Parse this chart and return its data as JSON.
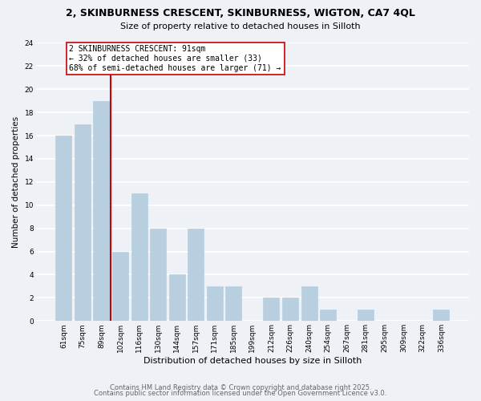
{
  "title": "2, SKINBURNESS CRESCENT, SKINBURNESS, WIGTON, CA7 4QL",
  "subtitle": "Size of property relative to detached houses in Silloth",
  "xlabel": "Distribution of detached houses by size in Silloth",
  "ylabel": "Number of detached properties",
  "bar_color": "#b8cfe0",
  "bar_edge_color": "#b8cfe0",
  "background_color": "#eef2f7",
  "plot_bg_color": "#eef2f7",
  "grid_color": "#ffffff",
  "categories": [
    "61sqm",
    "75sqm",
    "89sqm",
    "102sqm",
    "116sqm",
    "130sqm",
    "144sqm",
    "157sqm",
    "171sqm",
    "185sqm",
    "199sqm",
    "212sqm",
    "226sqm",
    "240sqm",
    "254sqm",
    "267sqm",
    "281sqm",
    "295sqm",
    "309sqm",
    "322sqm",
    "336sqm"
  ],
  "values": [
    16,
    17,
    19,
    6,
    11,
    8,
    4,
    8,
    3,
    3,
    0,
    2,
    2,
    3,
    1,
    0,
    1,
    0,
    0,
    0,
    1
  ],
  "ylim": [
    0,
    24
  ],
  "yticks": [
    0,
    2,
    4,
    6,
    8,
    10,
    12,
    14,
    16,
    18,
    20,
    22,
    24
  ],
  "vline_bar_index": 2,
  "annotation_box_text_line1": "2 SKINBURNESS CRESCENT: 91sqm",
  "annotation_box_text_line2": "← 32% of detached houses are smaller (33)",
  "annotation_box_text_line3": "68% of semi-detached houses are larger (71) →",
  "vline_color": "#cc0000",
  "annotation_edge_color": "#cc0000",
  "footer1": "Contains HM Land Registry data © Crown copyright and database right 2025.",
  "footer2": "Contains public sector information licensed under the Open Government Licence v3.0.",
  "title_fontsize": 9,
  "subtitle_fontsize": 8,
  "xlabel_fontsize": 8,
  "ylabel_fontsize": 7.5,
  "tick_fontsize": 6.5,
  "annotation_fontsize": 7,
  "footer_fontsize": 6
}
